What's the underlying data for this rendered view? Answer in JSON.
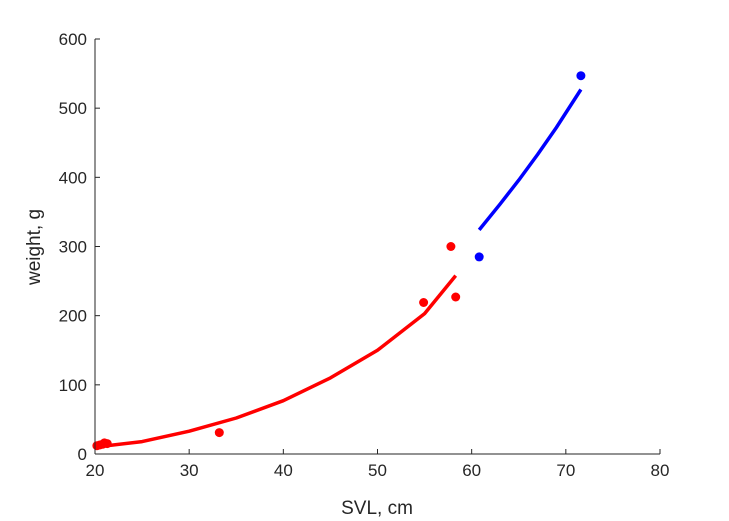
{
  "chart_data": {
    "type": "scatter",
    "title": "",
    "xlabel": "SVL, cm",
    "ylabel": "weight, g",
    "xlim": [
      20,
      80
    ],
    "ylim": [
      0,
      600
    ],
    "xticks": [
      20,
      30,
      40,
      50,
      60,
      70,
      80
    ],
    "yticks": [
      0,
      100,
      200,
      300,
      400,
      500,
      600
    ],
    "grid": false,
    "series": [
      {
        "color": "#ff0000",
        "points": [
          {
            "x": 20.2,
            "y": 12
          },
          {
            "x": 20.5,
            "y": 13
          },
          {
            "x": 20.8,
            "y": 14
          },
          {
            "x": 21.0,
            "y": 16
          },
          {
            "x": 21.3,
            "y": 15
          },
          {
            "x": 33.2,
            "y": 31
          },
          {
            "x": 54.9,
            "y": 219
          },
          {
            "x": 57.8,
            "y": 300
          },
          {
            "x": 58.3,
            "y": 227
          }
        ],
        "curve": [
          {
            "x": 20,
            "y": 10
          },
          {
            "x": 25,
            "y": 18
          },
          {
            "x": 30,
            "y": 33
          },
          {
            "x": 35,
            "y": 52
          },
          {
            "x": 40,
            "y": 77
          },
          {
            "x": 45,
            "y": 110
          },
          {
            "x": 50,
            "y": 150
          },
          {
            "x": 55,
            "y": 203
          },
          {
            "x": 58.3,
            "y": 258
          }
        ]
      },
      {
        "color": "#0000ff",
        "points": [
          {
            "x": 60.8,
            "y": 285
          },
          {
            "x": 71.6,
            "y": 547
          }
        ],
        "curve": [
          {
            "x": 60.8,
            "y": 324
          },
          {
            "x": 63,
            "y": 361
          },
          {
            "x": 65,
            "y": 396
          },
          {
            "x": 67,
            "y": 433
          },
          {
            "x": 69,
            "y": 472
          },
          {
            "x": 71.6,
            "y": 527
          }
        ]
      }
    ]
  }
}
